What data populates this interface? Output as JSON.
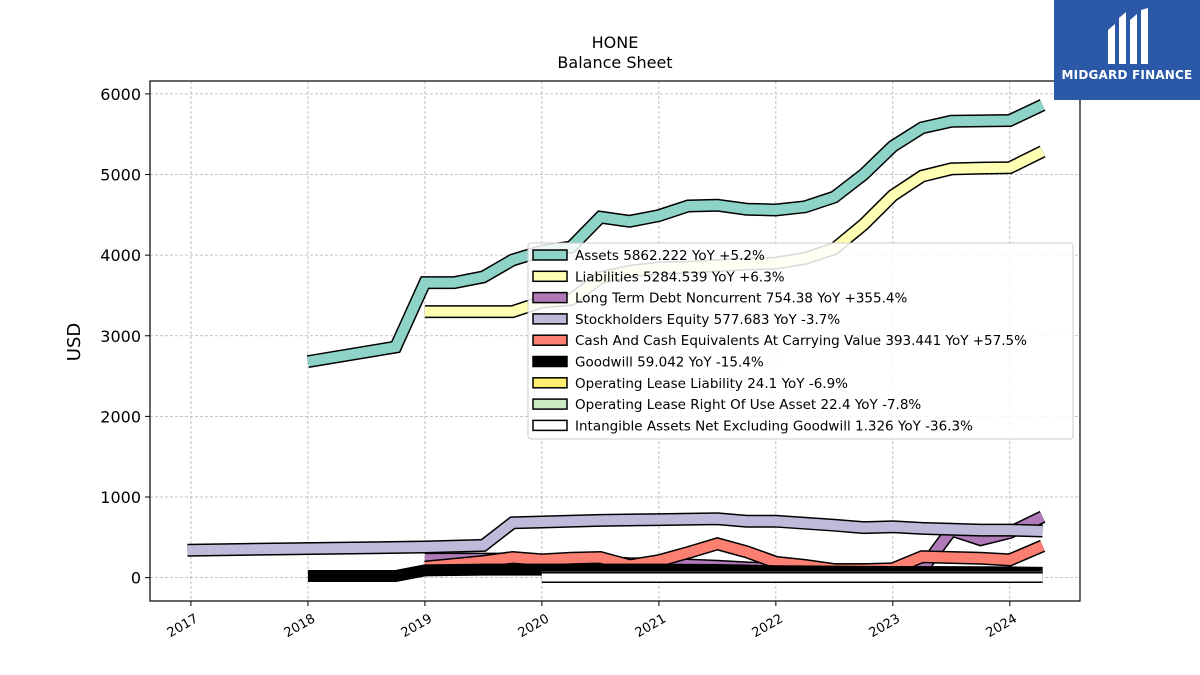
{
  "logo": {
    "text": "MIDGARD FINANCE",
    "background": "#2c58a8"
  },
  "chart_data": {
    "type": "line",
    "title": "HONE",
    "subtitle": "Balance  Sheet",
    "ylabel": "USD",
    "xlabel": "",
    "xlim": [
      2016.65,
      2024.6
    ],
    "ylim": [
      -290,
      6160
    ],
    "yticks": [
      0,
      1000,
      2000,
      3000,
      4000,
      5000,
      6000
    ],
    "xticks": [
      2017,
      2018,
      2019,
      2020,
      2021,
      2022,
      2023,
      2024
    ],
    "xtick_labels": [
      "2017",
      "2018",
      "2019",
      "2020",
      "2021",
      "2022",
      "2023",
      "2024"
    ],
    "grid": true,
    "legend_position": "right-center",
    "series": [
      {
        "name": "Assets",
        "legend": "Assets  5862.222 YoY +5.2%",
        "color": "#8dd3c7",
        "x": [
          2018.0,
          2018.75,
          2019.0,
          2019.25,
          2019.5,
          2019.75,
          2020.0,
          2020.25,
          2020.5,
          2020.75,
          2021.0,
          2021.25,
          2021.5,
          2021.75,
          2022.0,
          2022.25,
          2022.5,
          2022.75,
          2023.0,
          2023.25,
          2023.5,
          2023.75,
          2024.0,
          2024.28
        ],
        "y": [
          2680,
          2860,
          3660,
          3660,
          3730,
          3940,
          4050,
          4100,
          4470,
          4420,
          4490,
          4610,
          4620,
          4570,
          4560,
          4600,
          4720,
          5000,
          5350,
          5580,
          5660,
          5665,
          5670,
          5862
        ]
      },
      {
        "name": "Liabilities",
        "legend": "Liabilities  5284.539 YoY +6.3%",
        "color": "#ffffb3",
        "x": [
          2019.0,
          2019.75,
          2020.0,
          2020.25,
          2020.5,
          2020.75,
          2021.0,
          2021.25,
          2021.5,
          2021.75,
          2022.0,
          2022.25,
          2022.5,
          2022.75,
          2023.0,
          2023.25,
          2023.5,
          2023.75,
          2024.0,
          2024.28
        ],
        "y": [
          3300,
          3300,
          3420,
          3450,
          3720,
          3800,
          3840,
          3850,
          3870,
          3890,
          3900,
          3960,
          4080,
          4380,
          4740,
          4980,
          5070,
          5080,
          5085,
          5285
        ]
      },
      {
        "name": "Long Term Debt Noncurrent",
        "legend": "Long Term Debt Noncurrent  754.38 YoY +355.4%",
        "color": "#bebada",
        "fill": "#b07ab8",
        "x": [
          2019.0,
          2019.5,
          2019.75,
          2020.0,
          2020.5,
          2020.75,
          2021.0,
          2021.5,
          2021.75,
          2022.0,
          2022.5,
          2022.75,
          2023.0,
          2023.25,
          2023.5,
          2023.75,
          2024.0,
          2024.28
        ],
        "y": [
          230,
          230,
          230,
          200,
          200,
          170,
          170,
          140,
          120,
          110,
          100,
          100,
          100,
          100,
          590,
          470,
          560,
          754
        ]
      },
      {
        "name": "Stockholders Equity",
        "legend": "Stockholders Equity  577.683 YoY -3.7%",
        "color": "#bebada",
        "x": [
          2016.97,
          2019.0,
          2019.5,
          2019.75,
          2020.0,
          2020.5,
          2021.0,
          2021.5,
          2021.75,
          2022.0,
          2022.5,
          2022.75,
          2023.0,
          2023.25,
          2023.75,
          2024.0,
          2024.28
        ],
        "y": [
          340,
          380,
          400,
          680,
          690,
          710,
          720,
          730,
          700,
          700,
          650,
          620,
          630,
          610,
          590,
          590,
          578
        ]
      },
      {
        "name": "Cash And Cash Equivalents At Carrying Value",
        "legend": "Cash And Cash Equivalents At Carrying Value  393.441 YoY +57.5%",
        "color": "#fb8072",
        "x": [
          2019.0,
          2019.5,
          2019.75,
          2020.0,
          2020.25,
          2020.5,
          2020.75,
          2021.0,
          2021.25,
          2021.5,
          2021.75,
          2022.0,
          2022.25,
          2022.5,
          2022.75,
          2023.0,
          2023.25,
          2023.5,
          2023.75,
          2024.0,
          2024.28
        ],
        "y": [
          130,
          200,
          250,
          220,
          240,
          250,
          150,
          210,
          310,
          420,
          320,
          190,
          150,
          100,
          100,
          110,
          260,
          250,
          240,
          220,
          393
        ]
      },
      {
        "name": "Goodwill",
        "legend": "Goodwill  59.042 YoY -15.4%",
        "color": "#000000",
        "x": [
          2018.0,
          2018.75,
          2019.0,
          2019.5,
          2020.0,
          2020.5,
          2021.0,
          2021.5,
          2022.0,
          2022.5,
          2023.0,
          2023.5,
          2024.0,
          2024.28
        ],
        "y": [
          20,
          20,
          90,
          100,
          100,
          100,
          100,
          95,
          80,
          75,
          70,
          68,
          65,
          59
        ]
      },
      {
        "name": "Operating Lease Liability",
        "legend": "Operating Lease Liability  24.1 YoY -6.9%",
        "color": "#ffed6f",
        "x": [
          2020.0,
          2024.28
        ],
        "y": [
          25,
          24.1
        ]
      },
      {
        "name": "Operating Lease Right Of Use Asset",
        "legend": "Operating Lease Right Of Use Asset  22.4 YoY -7.8%",
        "color": "#ccebc5",
        "x": [
          2020.0,
          2024.28
        ],
        "y": [
          24,
          22.4
        ]
      },
      {
        "name": "Intangible Assets Net Excluding Goodwill",
        "legend": "Intangible Assets Net Excluding Goodwill  1.326 YoY -36.3%",
        "color": "#ffffff",
        "x": [
          2020.0,
          2024.28
        ],
        "y": [
          2,
          1.326
        ]
      }
    ]
  }
}
